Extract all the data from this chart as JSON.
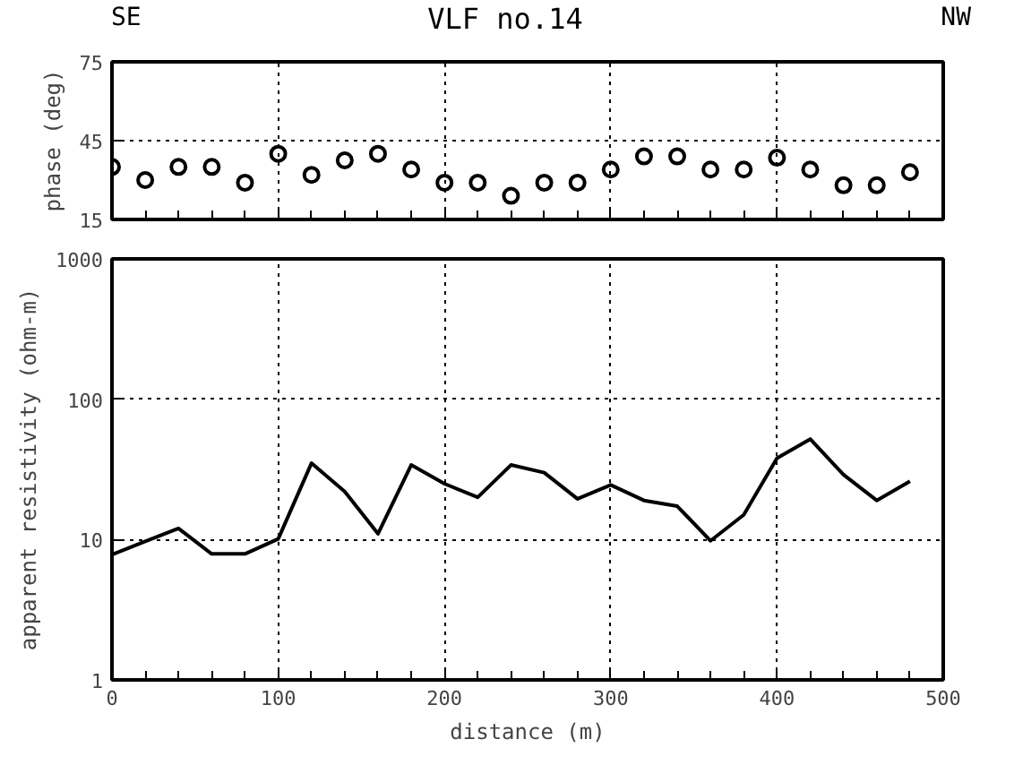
{
  "chart_data": [
    {
      "type": "scatter",
      "title": "VLF no.14",
      "ylabel": "phase (deg)",
      "annotations": [
        "SE",
        "NW"
      ],
      "x": [
        0,
        20,
        40,
        60,
        80,
        100,
        120,
        140,
        160,
        180,
        200,
        220,
        240,
        260,
        280,
        300,
        320,
        340,
        360,
        380,
        400,
        420,
        440,
        460,
        480
      ],
      "series": [
        {
          "color": "#000000",
          "values": [
            35,
            30,
            35,
            35,
            29,
            40,
            32,
            37.5,
            40,
            34,
            29,
            29,
            24,
            29,
            29,
            34,
            39,
            39,
            34,
            34,
            38.5,
            34,
            28,
            28,
            33
          ]
        }
      ],
      "marker": "circle",
      "xlim": [
        0,
        500
      ],
      "xticks": [
        0,
        100,
        200,
        300,
        400,
        500
      ],
      "ylim": [
        15,
        75
      ],
      "yticks": [
        15,
        45,
        75
      ],
      "grid": true,
      "tick_labels": "y"
    },
    {
      "type": "line",
      "xlabel": "distance (m)",
      "ylabel": "apparent resistivity (ohm-m)",
      "x": [
        0,
        20,
        40,
        60,
        80,
        100,
        120,
        140,
        160,
        180,
        200,
        220,
        240,
        260,
        280,
        300,
        320,
        340,
        360,
        380,
        400,
        420,
        440,
        460,
        480
      ],
      "series": [
        {
          "color": "#000000",
          "values": [
            7.8,
            9.7,
            12,
            7.9,
            7.9,
            10.1,
            35,
            22,
            11,
            34,
            25,
            20,
            34,
            30,
            19.5,
            24.5,
            19,
            17.3,
            9.8,
            15,
            38,
            52,
            29,
            19,
            26
          ]
        }
      ],
      "marker": "none",
      "line_style": "solid",
      "log": true,
      "xlim": [
        0,
        500
      ],
      "xticks": [
        0,
        100,
        200,
        300,
        400,
        500
      ],
      "ylim": [
        1,
        1000
      ],
      "yticks": [
        1,
        10,
        100,
        1000
      ],
      "grid": true
    }
  ]
}
